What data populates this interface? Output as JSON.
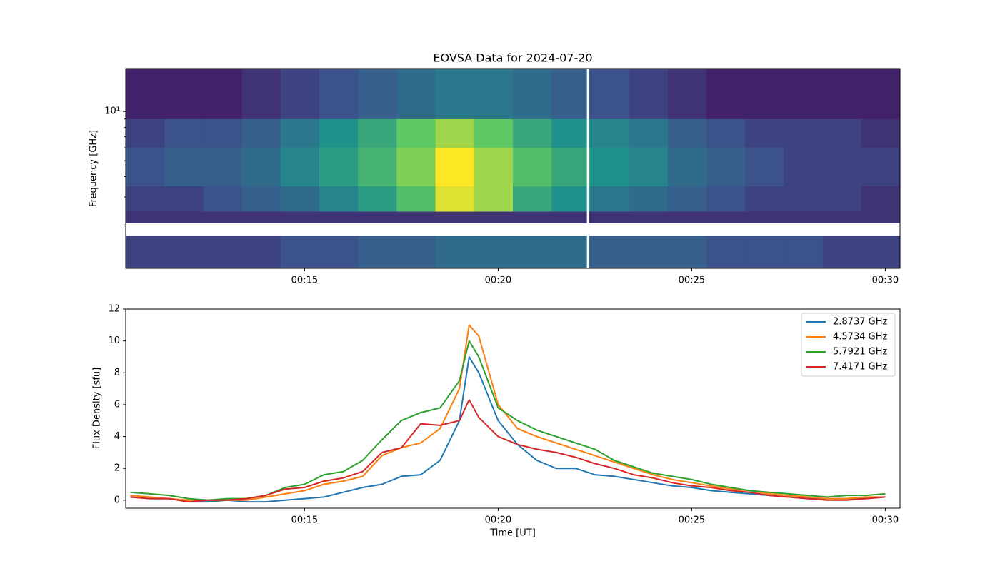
{
  "chart_data": [
    {
      "type": "heatmap",
      "title": "EOVSA Data for 2024-07-20",
      "ylabel": "Frequency [GHz]",
      "yscale": "log",
      "xlim": [
        10.38,
        30.38
      ],
      "ylim": [
        1.1,
        18.3
      ],
      "xticks": [
        {
          "value": 15,
          "label": "00:15"
        },
        {
          "value": 20,
          "label": "00:20"
        },
        {
          "value": 25,
          "label": "00:25"
        },
        {
          "value": 30,
          "label": "00:30"
        }
      ],
      "yticks": [
        {
          "value": 10,
          "label": "10¹"
        }
      ],
      "yminorticks": [
        2,
        3,
        4,
        5,
        6,
        7,
        8,
        9
      ],
      "colormap": "viridis",
      "x_edges": [
        10.38,
        11.38,
        12.38,
        13.38,
        14.38,
        15.38,
        16.38,
        17.38,
        18.38,
        19.38,
        20.38,
        21.38,
        22.38,
        23.38,
        24.38,
        25.38,
        26.38,
        27.38,
        28.38,
        29.38,
        30.38
      ],
      "y_edges": [
        1.1,
        1.74,
        2.08,
        2.45,
        3.5,
        6,
        9,
        18.3
      ],
      "z": [
        [
          0.2,
          0.2,
          0.2,
          0.2,
          0.25,
          0.25,
          0.3,
          0.3,
          0.35,
          0.35,
          0.35,
          0.35,
          0.3,
          0.3,
          0.3,
          0.25,
          0.25,
          0.25,
          0.2,
          0.2
        ],
        [
          null,
          null,
          null,
          null,
          null,
          null,
          null,
          null,
          null,
          null,
          null,
          null,
          null,
          null,
          null,
          null,
          null,
          null,
          null,
          null
        ],
        [
          0.15,
          0.15,
          0.15,
          0.15,
          0.15,
          0.15,
          0.15,
          0.15,
          0.15,
          0.15,
          0.15,
          0.15,
          0.15,
          0.15,
          0.15,
          0.15,
          0.15,
          0.15,
          0.15,
          0.15
        ],
        [
          0.2,
          0.2,
          0.25,
          0.3,
          0.35,
          0.45,
          0.55,
          0.7,
          0.95,
          0.85,
          0.6,
          0.5,
          0.4,
          0.35,
          0.3,
          0.25,
          0.2,
          0.2,
          0.2,
          0.15
        ],
        [
          0.25,
          0.3,
          0.3,
          0.35,
          0.45,
          0.55,
          0.65,
          0.8,
          1.0,
          0.85,
          0.7,
          0.6,
          0.5,
          0.45,
          0.35,
          0.3,
          0.25,
          0.2,
          0.2,
          0.2
        ],
        [
          0.2,
          0.25,
          0.25,
          0.3,
          0.4,
          0.5,
          0.6,
          0.75,
          0.85,
          0.75,
          0.6,
          0.5,
          0.45,
          0.4,
          0.3,
          0.25,
          0.2,
          0.2,
          0.2,
          0.15
        ],
        [
          0.1,
          0.1,
          0.1,
          0.15,
          0.2,
          0.25,
          0.3,
          0.35,
          0.4,
          0.4,
          0.35,
          0.3,
          0.25,
          0.2,
          0.15,
          0.1,
          0.1,
          0.1,
          0.1,
          0.1
        ]
      ],
      "gaps": [
        22.32
      ]
    },
    {
      "type": "line",
      "xlabel": "Time [UT]",
      "ylabel": "Flux Density [sfu]",
      "xlim": [
        10.38,
        30.38
      ],
      "ylim": [
        -0.5,
        12
      ],
      "xticks": [
        {
          "value": 15,
          "label": "00:15"
        },
        {
          "value": 20,
          "label": "00:20"
        },
        {
          "value": 25,
          "label": "00:25"
        },
        {
          "value": 30,
          "label": "00:30"
        }
      ],
      "yticks": [
        0,
        2,
        4,
        6,
        8,
        10,
        12
      ],
      "legend": "upper right",
      "x": [
        10.5,
        11,
        11.5,
        12,
        12.5,
        13,
        13.5,
        14,
        14.5,
        15,
        15.5,
        16,
        16.5,
        17,
        17.5,
        18,
        18.5,
        19,
        19.25,
        19.5,
        20,
        20.5,
        21,
        21.5,
        22,
        22.5,
        23,
        23.5,
        24,
        24.5,
        25,
        25.5,
        26,
        26.5,
        27,
        27.5,
        28,
        28.5,
        29,
        29.5,
        30
      ],
      "series": [
        {
          "name": "2.8737 GHz",
          "color": "#1f77b4",
          "values": [
            0.2,
            0.1,
            0.1,
            -0.1,
            -0.1,
            0,
            -0.1,
            -0.1,
            0,
            0.1,
            0.2,
            0.5,
            0.8,
            1.0,
            1.5,
            1.6,
            2.5,
            5.0,
            9.0,
            8.0,
            5.0,
            3.5,
            2.5,
            2.0,
            2.0,
            1.6,
            1.5,
            1.3,
            1.1,
            0.9,
            0.8,
            0.6,
            0.5,
            0.4,
            0.3,
            0.2,
            0.1,
            0.1,
            0.1,
            0.1,
            0.2
          ]
        },
        {
          "name": "4.5734 GHz",
          "color": "#ff7f0e",
          "values": [
            0.3,
            0.2,
            0.1,
            0,
            0,
            0,
            0,
            0.2,
            0.4,
            0.6,
            1.0,
            1.2,
            1.5,
            2.8,
            3.3,
            3.6,
            4.5,
            7.0,
            11.0,
            10.3,
            6.0,
            4.5,
            4.0,
            3.6,
            3.2,
            2.8,
            2.4,
            2.0,
            1.6,
            1.3,
            1.1,
            0.9,
            0.7,
            0.6,
            0.4,
            0.3,
            0.2,
            0.1,
            0.1,
            0.2,
            0.2
          ]
        },
        {
          "name": "5.7921 GHz",
          "color": "#2ca02c",
          "values": [
            0.5,
            0.4,
            0.3,
            0.1,
            0,
            0.1,
            0.1,
            0.3,
            0.8,
            1.0,
            1.6,
            1.8,
            2.5,
            3.8,
            5.0,
            5.5,
            5.8,
            7.5,
            10.0,
            9.0,
            5.8,
            5.0,
            4.4,
            4.0,
            3.6,
            3.2,
            2.5,
            2.1,
            1.7,
            1.5,
            1.3,
            1.0,
            0.8,
            0.6,
            0.5,
            0.4,
            0.3,
            0.2,
            0.3,
            0.3,
            0.4
          ]
        },
        {
          "name": "7.4171 GHz",
          "color": "#d62728",
          "values": [
            0.2,
            0.1,
            0.1,
            -0.1,
            0,
            0,
            0.1,
            0.3,
            0.7,
            0.8,
            1.2,
            1.4,
            1.8,
            3.0,
            3.3,
            4.8,
            4.7,
            5.0,
            6.3,
            5.2,
            4.0,
            3.5,
            3.2,
            3.0,
            2.7,
            2.3,
            2.0,
            1.6,
            1.4,
            1.1,
            0.9,
            0.8,
            0.6,
            0.5,
            0.3,
            0.2,
            0.1,
            0,
            0,
            0.1,
            0.2
          ]
        }
      ]
    }
  ]
}
